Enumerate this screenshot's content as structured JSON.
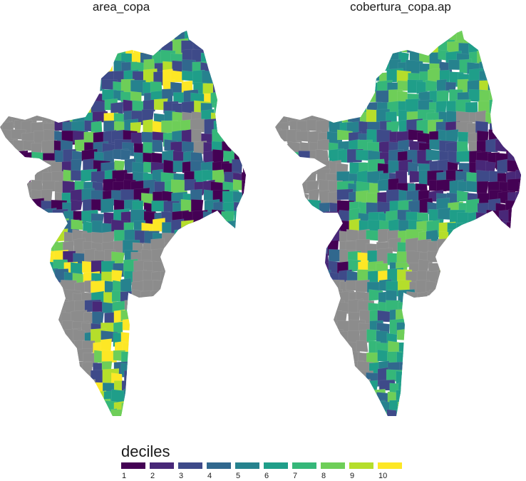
{
  "panels": [
    {
      "title": "area_copa",
      "seed": 7
    },
    {
      "title": "cobertura_copa.ap",
      "seed": 19
    }
  ],
  "legend": {
    "title": "deciles",
    "labels": [
      "1",
      "2",
      "3",
      "4",
      "5",
      "6",
      "7",
      "8",
      "9",
      "10"
    ],
    "colors": [
      "#440154",
      "#482878",
      "#3e4a89",
      "#31688e",
      "#26828e",
      "#1f9e89",
      "#35b779",
      "#6ece58",
      "#b5de2b",
      "#fde725"
    ]
  },
  "na_color": "#8c8c8c"
}
